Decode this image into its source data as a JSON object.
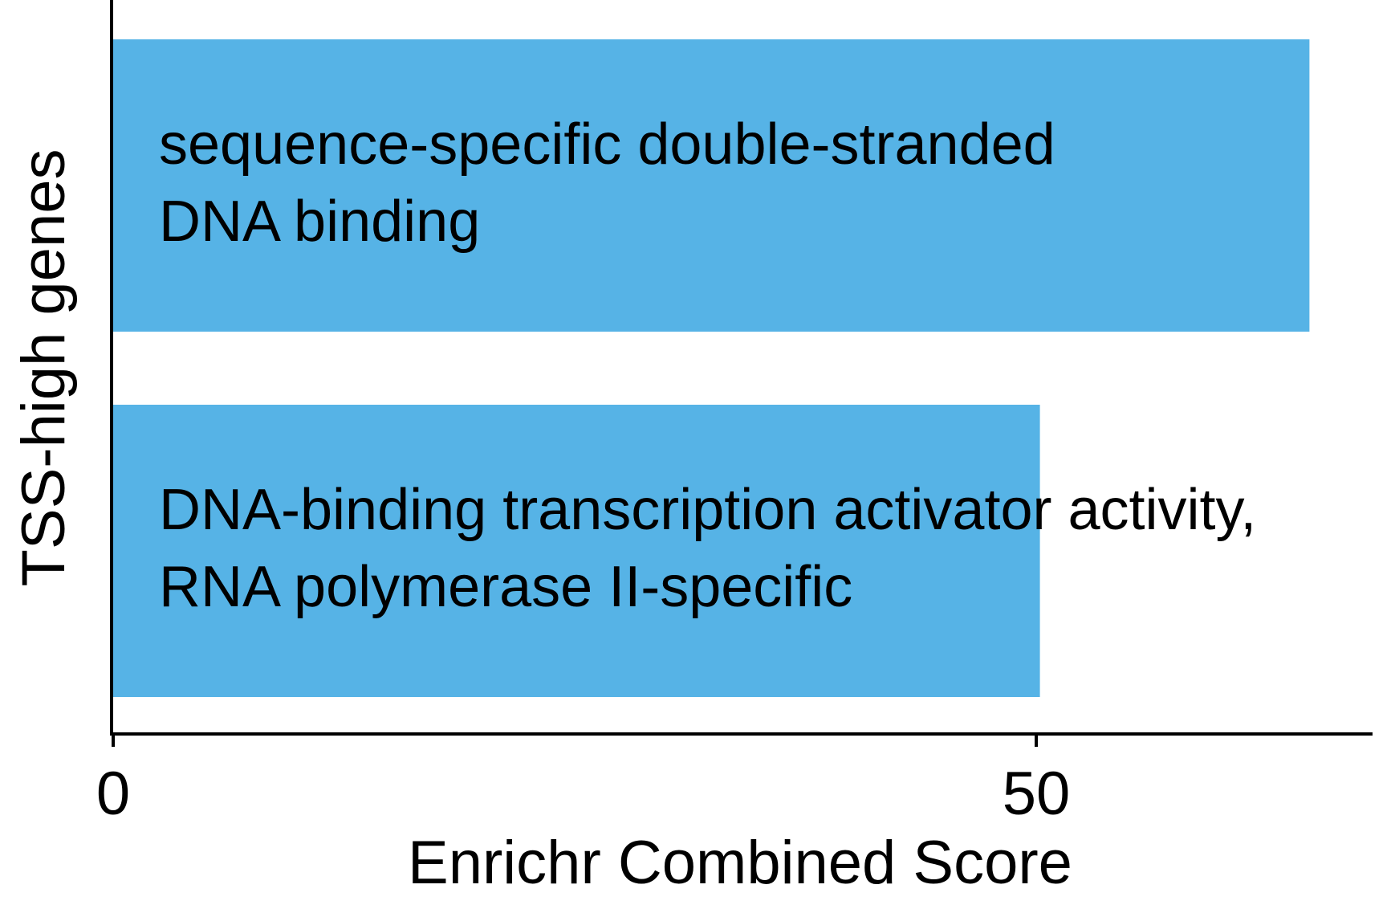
{
  "chart_data": {
    "type": "bar",
    "orientation": "horizontal",
    "categories": [
      [
        "sequence-specific double-stranded",
        "DNA binding"
      ],
      [
        "DNA-binding transcription activator activity,",
        "RNA polymerase II-specific"
      ]
    ],
    "values": [
      64.8,
      50.2
    ],
    "xlabel": "Enrichr Combined Score",
    "ylabel": "TSS-high genes",
    "xticks": [
      0,
      50
    ],
    "xlim": [
      0,
      68
    ],
    "bar_color": "#56B3E6",
    "grid": false,
    "legend": "none"
  }
}
